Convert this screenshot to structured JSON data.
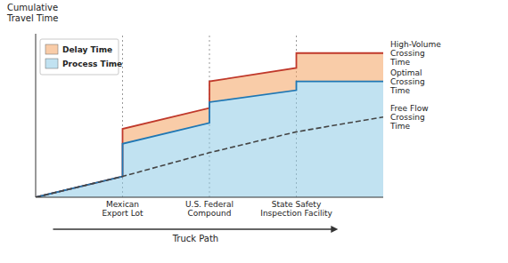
{
  "chart_data": {
    "type": "line",
    "ylabel": "Cumulative\nTravel Time",
    "xlabel": "Truck Path",
    "x": [
      0,
      1.5,
      1.5,
      3.0,
      3.0,
      4.5,
      4.5,
      6.0
    ],
    "series": [
      {
        "name": "High-Volume\nCrossing\nTime",
        "values": [
          0,
          0.14,
          0.46,
          0.6,
          0.78,
          0.87,
          0.97,
          0.97
        ],
        "line_style": "solid"
      },
      {
        "name": "Optimal\nCrossing\nTime",
        "values": [
          0,
          0.14,
          0.36,
          0.5,
          0.64,
          0.72,
          0.78,
          0.78
        ],
        "line_style": "solid"
      },
      {
        "name": "Free Flow\nCrossing\nTime",
        "values": [
          0,
          0.14,
          0.14,
          0.3,
          0.3,
          0.44,
          0.44,
          0.54
        ],
        "line_style": "dashed"
      }
    ],
    "areas": [
      {
        "name": "Delay Time",
        "upper": 0,
        "lower": 1
      },
      {
        "name": "Process Time",
        "upper": 1,
        "lower": null
      }
    ],
    "sections": [
      {
        "x": 1.5,
        "label": "Mexican\nExport Lot"
      },
      {
        "x": 3.0,
        "label": "U.S. Federal\nCompound"
      },
      {
        "x": 4.5,
        "label": "State Safety\nInspection Facility"
      }
    ],
    "xlim": [
      0,
      6.0
    ],
    "ylim": [
      0,
      1.1
    ],
    "xticks": [],
    "yticks": [],
    "tick_labels": false,
    "grid": false,
    "legend": "upper left"
  }
}
